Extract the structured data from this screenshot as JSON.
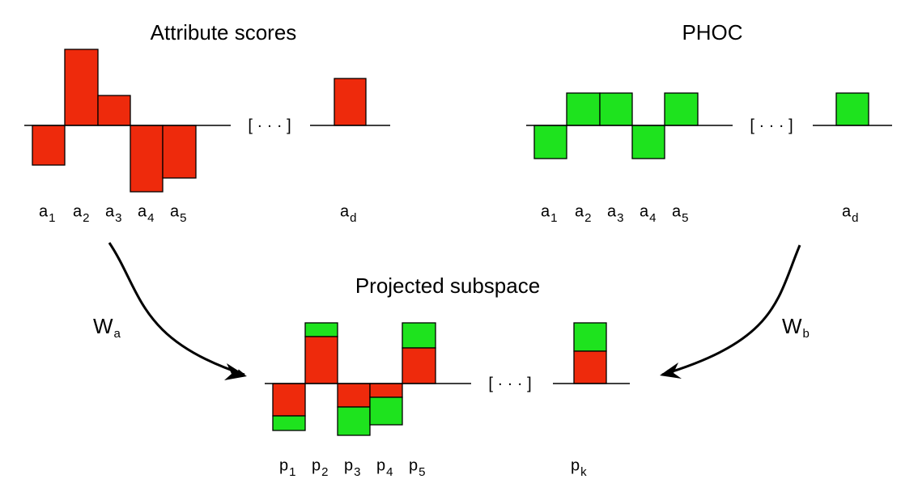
{
  "attribute_scores": {
    "title": "Attribute scores",
    "ellipsis": "[ · · · ]",
    "labels": [
      {
        "base": "a",
        "sub": "1"
      },
      {
        "base": "a",
        "sub": "2"
      },
      {
        "base": "a",
        "sub": "3"
      },
      {
        "base": "a",
        "sub": "4"
      },
      {
        "base": "a",
        "sub": "5"
      },
      {
        "base": "a",
        "sub": "d"
      }
    ]
  },
  "phoc": {
    "title": "PHOC",
    "ellipsis": "[ · · · ]",
    "labels": [
      {
        "base": "a",
        "sub": "1"
      },
      {
        "base": "a",
        "sub": "2"
      },
      {
        "base": "a",
        "sub": "3"
      },
      {
        "base": "a",
        "sub": "4"
      },
      {
        "base": "a",
        "sub": "5"
      },
      {
        "base": "a",
        "sub": "d"
      }
    ]
  },
  "projected_subspace": {
    "title": "Projected subspace",
    "ellipsis": "[ · · · ]",
    "labels": [
      {
        "base": "p",
        "sub": "1"
      },
      {
        "base": "p",
        "sub": "2"
      },
      {
        "base": "p",
        "sub": "3"
      },
      {
        "base": "p",
        "sub": "4"
      },
      {
        "base": "p",
        "sub": "5"
      },
      {
        "base": "p",
        "sub": "k"
      }
    ]
  },
  "arrows": [
    {
      "base": "W",
      "sub": "a"
    },
    {
      "base": "W",
      "sub": "b"
    }
  ]
}
